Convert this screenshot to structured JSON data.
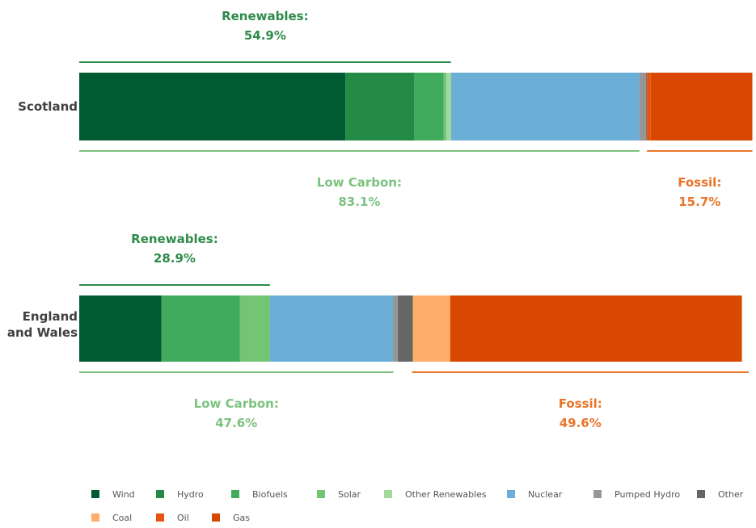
{
  "chart_data": {
    "type": "bar",
    "orientation": "horizontal",
    "stacked": true,
    "unit": "%",
    "xlim": [
      0,
      100
    ],
    "categories": [
      "Scotland",
      "England and Wales"
    ],
    "series": [
      {
        "name": "Wind",
        "color": "#005a32",
        "values": [
          35.6,
          11.0
        ]
      },
      {
        "name": "Hydro",
        "color": "#238b45",
        "values": [
          9.2,
          0.0
        ]
      },
      {
        "name": "Biofuels",
        "color": "#41ab5d",
        "values": [
          3.9,
          10.5
        ]
      },
      {
        "name": "Solar",
        "color": "#74c476",
        "values": [
          0.4,
          4.0
        ]
      },
      {
        "name": "Other Renewables",
        "color": "#a1d99b",
        "values": [
          0.6,
          0.0
        ]
      },
      {
        "name": "Nuclear",
        "color": "#6baed6",
        "values": [
          25.2,
          16.5
        ]
      },
      {
        "name": "Pumped Hydro",
        "color": "#969696",
        "values": [
          0.9,
          0.6
        ]
      },
      {
        "name": "Other",
        "color": "#666666",
        "values": [
          0.1,
          2.0
        ]
      },
      {
        "name": "Coal",
        "color": "#fdae6b",
        "values": [
          0.0,
          5.0
        ]
      },
      {
        "name": "Oil",
        "color": "#e6550d",
        "values": [
          0.5,
          0.0
        ]
      },
      {
        "name": "Gas",
        "color": "#d94801",
        "values": [
          13.6,
          39.0
        ]
      }
    ],
    "brackets": [
      {
        "row": 0,
        "position": "above",
        "label": "Renewables:",
        "value": "54.9%",
        "from": 0.0,
        "to": 49.7,
        "color": "#2e8b4a"
      },
      {
        "row": 0,
        "position": "below",
        "label": "Low Carbon:",
        "value": "83.1%",
        "from": 0.0,
        "to": 74.9,
        "color": "#7cc27e"
      },
      {
        "row": 0,
        "position": "below",
        "label": "Fossil:",
        "value": "15.7%",
        "from": 75.9,
        "to": 90.0,
        "color": "#e8742a"
      },
      {
        "row": 1,
        "position": "above",
        "label": "Renewables:",
        "value": "28.9%",
        "from": 0.0,
        "to": 25.5,
        "color": "#2e8b4a"
      },
      {
        "row": 1,
        "position": "below",
        "label": "Low Carbon:",
        "value": "47.6%",
        "from": 0.0,
        "to": 42.0,
        "color": "#7cc27e"
      },
      {
        "row": 1,
        "position": "below",
        "label": "Fossil:",
        "value": "49.6%",
        "from": 44.5,
        "to": 89.5,
        "color": "#e8742a"
      }
    ],
    "legend_position": "bottom",
    "grid": false
  }
}
